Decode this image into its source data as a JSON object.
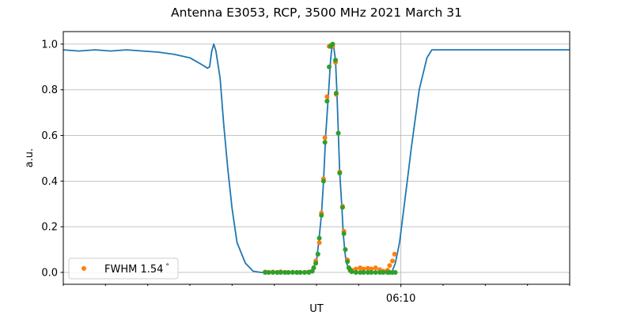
{
  "chart_data": {
    "type": "line",
    "title": "Antenna E3053, RCP, 3500 MHz 2021 March 31",
    "xlabel": "UT",
    "ylabel": "a.u.",
    "xlim": [
      "06:02:00",
      "06:14:00"
    ],
    "ylim": [
      -0.052,
      1.055
    ],
    "x_major_ticks": [
      {
        "time": "06:10:00",
        "label": "06:10"
      }
    ],
    "x_minor_ticks": [
      "06:02:00",
      "06:03:00",
      "06:04:00",
      "06:05:00",
      "06:06:00",
      "06:07:00",
      "06:08:00",
      "06:09:00",
      "06:11:00",
      "06:12:00",
      "06:13:00",
      "06:14:00"
    ],
    "y_ticks": [
      0.0,
      0.2,
      0.4,
      0.6,
      0.8,
      1.0
    ],
    "y_tick_labels": [
      "0.0",
      "0.2",
      "0.4",
      "0.6",
      "0.8",
      "1.0"
    ],
    "grid": "on",
    "legend": {
      "placement": "lower-left",
      "entries": [
        {
          "label": "FWHM 1.54$^\\circ$",
          "text": "FWHM 1.54",
          "suffix": "°",
          "series": 1
        }
      ]
    },
    "series": [
      {
        "kind": "line",
        "color": "#1f77b4",
        "points": [
          [
            "06:02:00",
            0.975
          ],
          [
            "06:02:22",
            0.97
          ],
          [
            "06:02:45",
            0.975
          ],
          [
            "06:03:07",
            0.97
          ],
          [
            "06:03:30",
            0.975
          ],
          [
            "06:03:53",
            0.97
          ],
          [
            "06:04:15",
            0.965
          ],
          [
            "06:04:38",
            0.955
          ],
          [
            "06:05:00",
            0.94
          ],
          [
            "06:05:17",
            0.91
          ],
          [
            "06:05:25",
            0.895
          ],
          [
            "06:05:28",
            0.9
          ],
          [
            "06:05:31",
            0.97
          ],
          [
            "06:05:34",
            1.0
          ],
          [
            "06:05:37",
            0.97
          ],
          [
            "06:05:43",
            0.85
          ],
          [
            "06:05:48",
            0.65
          ],
          [
            "06:05:54",
            0.45
          ],
          [
            "06:06:00",
            0.28
          ],
          [
            "06:06:07",
            0.13
          ],
          [
            "06:06:19",
            0.04
          ],
          [
            "06:06:30",
            0.005
          ],
          [
            "06:06:41",
            0.0
          ],
          [
            "06:06:58",
            0.0
          ],
          [
            "06:07:37",
            0.0
          ],
          [
            "06:07:54",
            0.01
          ],
          [
            "06:08:00",
            0.05
          ],
          [
            "06:08:03",
            0.13
          ],
          [
            "06:08:07",
            0.25
          ],
          [
            "06:08:10",
            0.4
          ],
          [
            "06:08:13",
            0.6
          ],
          [
            "06:08:17",
            0.78
          ],
          [
            "06:08:20",
            0.93
          ],
          [
            "06:08:22",
            0.99
          ],
          [
            "06:08:24",
            1.0
          ],
          [
            "06:08:27",
            0.93
          ],
          [
            "06:08:29",
            0.79
          ],
          [
            "06:08:31",
            0.61
          ],
          [
            "06:08:33",
            0.44
          ],
          [
            "06:08:36",
            0.29
          ],
          [
            "06:08:38",
            0.17
          ],
          [
            "06:08:40",
            0.1
          ],
          [
            "06:08:42",
            0.05
          ],
          [
            "06:08:45",
            0.02
          ],
          [
            "06:08:50",
            0.003
          ],
          [
            "06:09:07",
            0.0
          ],
          [
            "06:09:47",
            0.0
          ],
          [
            "06:09:52",
            0.04
          ],
          [
            "06:09:58",
            0.13
          ],
          [
            "06:10:03",
            0.25
          ],
          [
            "06:10:09",
            0.4
          ],
          [
            "06:10:15",
            0.55
          ],
          [
            "06:10:26",
            0.8
          ],
          [
            "06:10:37",
            0.94
          ],
          [
            "06:10:44",
            0.975
          ],
          [
            "06:11:00",
            0.975
          ],
          [
            "06:11:45",
            0.975
          ],
          [
            "06:12:41",
            0.975
          ],
          [
            "06:13:37",
            0.975
          ],
          [
            "06:14:00",
            0.975
          ]
        ]
      },
      {
        "kind": "scatter",
        "name": "FWHM 1.54°",
        "color": "#ff7f0e",
        "points": [
          [
            "06:06:47",
            0.002
          ],
          [
            "06:06:52",
            0.0
          ],
          [
            "06:06:58",
            0.002
          ],
          [
            "06:07:04",
            0.0
          ],
          [
            "06:07:09",
            0.003
          ],
          [
            "06:07:15",
            0.0
          ],
          [
            "06:07:20",
            0.0
          ],
          [
            "06:07:26",
            0.001
          ],
          [
            "06:07:32",
            0.0
          ],
          [
            "06:07:37",
            0.0
          ],
          [
            "06:07:43",
            0.0
          ],
          [
            "06:07:49",
            0.002
          ],
          [
            "06:07:54",
            0.005
          ],
          [
            "06:07:56",
            0.02
          ],
          [
            "06:07:59",
            0.05
          ],
          [
            "06:08:02",
            0.08
          ],
          [
            "06:08:04",
            0.13
          ],
          [
            "06:08:07",
            0.26
          ],
          [
            "06:08:10",
            0.41
          ],
          [
            "06:08:12",
            0.59
          ],
          [
            "06:08:15",
            0.77
          ],
          [
            "06:08:18",
            0.99
          ],
          [
            "06:08:20",
            0.995
          ],
          [
            "06:08:23",
            0.99
          ],
          [
            "06:08:27",
            0.92
          ],
          [
            "06:08:28",
            0.78
          ],
          [
            "06:08:31",
            0.61
          ],
          [
            "06:08:33",
            0.44
          ],
          [
            "06:08:37",
            0.29
          ],
          [
            "06:08:39",
            0.18
          ],
          [
            "06:08:41",
            0.1
          ],
          [
            "06:08:44",
            0.055
          ],
          [
            "06:08:46",
            0.02
          ],
          [
            "06:08:48",
            0.008
          ],
          [
            "06:08:50",
            0.01
          ],
          [
            "06:08:56",
            0.015
          ],
          [
            "06:09:02",
            0.02
          ],
          [
            "06:09:07",
            0.015
          ],
          [
            "06:09:13",
            0.018
          ],
          [
            "06:09:18",
            0.015
          ],
          [
            "06:09:24",
            0.02
          ],
          [
            "06:09:30",
            0.012
          ],
          [
            "06:09:35",
            0.005
          ],
          [
            "06:09:41",
            0.01
          ],
          [
            "06:09:44",
            0.03
          ],
          [
            "06:09:48",
            0.05
          ],
          [
            "06:09:51",
            0.08
          ]
        ]
      },
      {
        "kind": "scatter",
        "color": "#2ca02c",
        "points": [
          [
            "06:06:47",
            0.0
          ],
          [
            "06:06:52",
            0.0
          ],
          [
            "06:06:58",
            0.0
          ],
          [
            "06:07:04",
            0.0
          ],
          [
            "06:07:09",
            0.0
          ],
          [
            "06:07:15",
            0.0
          ],
          [
            "06:07:20",
            0.0
          ],
          [
            "06:07:26",
            0.0
          ],
          [
            "06:07:32",
            0.0
          ],
          [
            "06:07:37",
            0.0
          ],
          [
            "06:07:43",
            0.0
          ],
          [
            "06:07:49",
            0.0
          ],
          [
            "06:07:54",
            0.005
          ],
          [
            "06:07:56",
            0.02
          ],
          [
            "06:07:59",
            0.04
          ],
          [
            "06:08:02",
            0.08
          ],
          [
            "06:08:04",
            0.15
          ],
          [
            "06:08:07",
            0.25
          ],
          [
            "06:08:10",
            0.4
          ],
          [
            "06:08:12",
            0.57
          ],
          [
            "06:08:15",
            0.75
          ],
          [
            "06:08:18",
            0.9
          ],
          [
            "06:08:20",
            0.99
          ],
          [
            "06:08:23",
            1.0
          ],
          [
            "06:08:27",
            0.93
          ],
          [
            "06:08:28",
            0.785
          ],
          [
            "06:08:31",
            0.61
          ],
          [
            "06:08:33",
            0.435
          ],
          [
            "06:08:37",
            0.285
          ],
          [
            "06:08:39",
            0.17
          ],
          [
            "06:08:41",
            0.1
          ],
          [
            "06:08:44",
            0.047
          ],
          [
            "06:08:46",
            0.02
          ],
          [
            "06:08:48",
            0.01
          ],
          [
            "06:08:50",
            0.003
          ],
          [
            "06:08:56",
            0.0
          ],
          [
            "06:09:02",
            0.0
          ],
          [
            "06:09:07",
            0.0
          ],
          [
            "06:09:13",
            0.0
          ],
          [
            "06:09:18",
            0.0
          ],
          [
            "06:09:24",
            0.0
          ],
          [
            "06:09:30",
            0.0
          ],
          [
            "06:09:35",
            0.0
          ],
          [
            "06:09:41",
            0.0
          ],
          [
            "06:09:44",
            0.0
          ],
          [
            "06:09:48",
            0.0
          ],
          [
            "06:09:52",
            0.0
          ]
        ]
      }
    ]
  }
}
